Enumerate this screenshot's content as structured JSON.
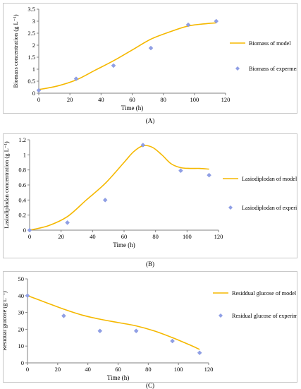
{
  "chart_data": [
    {
      "panel_label": "(A)",
      "type": "line",
      "xlabel": "Time (h)",
      "ylabel": "Biomass concentration (g L⁻¹)",
      "xlim": [
        0,
        120
      ],
      "ylim": [
        0,
        3.5
      ],
      "xticks": [
        0,
        20,
        40,
        60,
        80,
        100,
        120
      ],
      "yticks": [
        0,
        0.5,
        1,
        1.5,
        2,
        2.5,
        3,
        3.5
      ],
      "ytick_labels": [
        "0",
        "0.5",
        "1",
        "1.5",
        "2",
        "2.5",
        "3",
        "3.5"
      ],
      "grid": false,
      "legend_position": "right",
      "series": [
        {
          "name": "Biomass of model",
          "kind": "line",
          "color": "#f5b800",
          "x": [
            0,
            12,
            24,
            36,
            48,
            60,
            72,
            84,
            96,
            108,
            114
          ],
          "y": [
            0.15,
            0.3,
            0.55,
            0.95,
            1.35,
            1.8,
            2.25,
            2.55,
            2.8,
            2.9,
            2.93
          ]
        },
        {
          "name": "Biomass of experments",
          "kind": "scatter",
          "color": "#8f9fe6",
          "x": [
            0,
            24,
            48,
            72,
            96,
            114
          ],
          "y": [
            0.12,
            0.6,
            1.15,
            1.88,
            2.85,
            3.0
          ]
        }
      ]
    },
    {
      "panel_label": "(B)",
      "type": "line",
      "xlabel": "Time (h)",
      "ylabel": "Lasiodiplodan concentration (g L⁻¹)",
      "xlim": [
        0,
        120
      ],
      "ylim": [
        0,
        1.2
      ],
      "xticks": [
        0,
        20,
        40,
        60,
        80,
        100,
        120
      ],
      "yticks": [
        0,
        0.2,
        0.4,
        0.6,
        0.8,
        1,
        1.2
      ],
      "ytick_labels": [
        "0",
        "0.2",
        "0.4",
        "0.6",
        "0.8",
        "1",
        "1.2"
      ],
      "grid": false,
      "legend_position": "right",
      "series": [
        {
          "name": "Lasiodiplodan of model",
          "kind": "line",
          "color": "#f5b800",
          "x": [
            0,
            12,
            24,
            36,
            48,
            60,
            66,
            72,
            78,
            84,
            90,
            96,
            102,
            108,
            114
          ],
          "y": [
            0.0,
            0.06,
            0.18,
            0.4,
            0.62,
            0.9,
            1.04,
            1.12,
            1.1,
            1.0,
            0.88,
            0.83,
            0.82,
            0.82,
            0.81
          ]
        },
        {
          "name": "Lasiodiplodan of experiments",
          "kind": "scatter",
          "color": "#8f9fe6",
          "x": [
            0,
            24,
            48,
            72,
            96,
            114
          ],
          "y": [
            0.0,
            0.1,
            0.4,
            1.13,
            0.79,
            0.73
          ]
        }
      ]
    },
    {
      "panel_label": "(C)",
      "type": "line",
      "xlabel": "Time (h)",
      "ylabel": "Residual glucose (g L⁻¹)",
      "xlim": [
        0,
        120
      ],
      "ylim": [
        0,
        50
      ],
      "xticks": [
        0,
        20,
        40,
        60,
        80,
        100,
        120
      ],
      "yticks": [
        0,
        10,
        20,
        30,
        40,
        50
      ],
      "ytick_labels": [
        "0",
        "10",
        "20",
        "30",
        "40",
        "50"
      ],
      "grid": false,
      "legend_position": "right",
      "series": [
        {
          "name": "Residdual glucose of model",
          "kind": "line",
          "color": "#f5b800",
          "x": [
            0,
            12,
            24,
            36,
            48,
            60,
            72,
            84,
            96,
            108,
            114
          ],
          "y": [
            40,
            36,
            32,
            28.5,
            26,
            24,
            22,
            19,
            15,
            10.5,
            8
          ]
        },
        {
          "name": "Residual glucose of experiments",
          "kind": "scatter",
          "color": "#8f9fe6",
          "x": [
            0,
            24,
            48,
            72,
            96,
            114
          ],
          "y": [
            40,
            28,
            19,
            19,
            13,
            6
          ]
        }
      ]
    }
  ]
}
